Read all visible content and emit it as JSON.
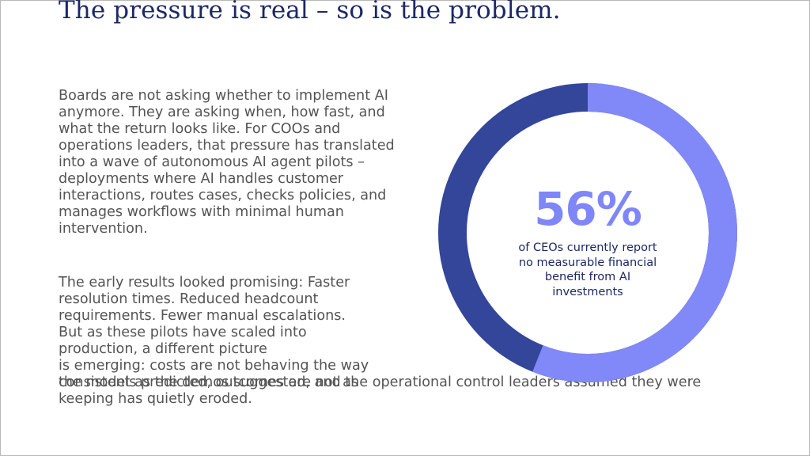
{
  "title": "The pressure is real – so is the problem.",
  "paragraph1": "Boards are not asking whether to implement AI anymore. They are asking when, how fast, and what the return looks like. For COOs and operations leaders, that pressure has translated into a wave of autonomous AI agent pilots – deployments where AI handles customer interactions, routes cases, checks policies, and manages workflows with minimal human intervention.",
  "paragraph2_lines": [
    "The early results looked promising: Faster",
    "resolution times. Reduced headcount",
    "requirements. Fewer manual escalations.",
    "But as these pilots have scaled into",
    "production, a different picture",
    "is emerging: costs are not behaving the way",
    "the models predicted, outcomes are not as"
  ],
  "paragraph2_tail": "consistent as the demos suggested, and the operational control leaders assumed they were keeping has quietly eroded.",
  "stat": {
    "value": "56%",
    "caption": "of CEOs currently report no measurable financial benefit from AI investments",
    "fraction": 0.56,
    "colors": {
      "highlight": "#8188f7",
      "remainder": "#33469a"
    }
  }
}
